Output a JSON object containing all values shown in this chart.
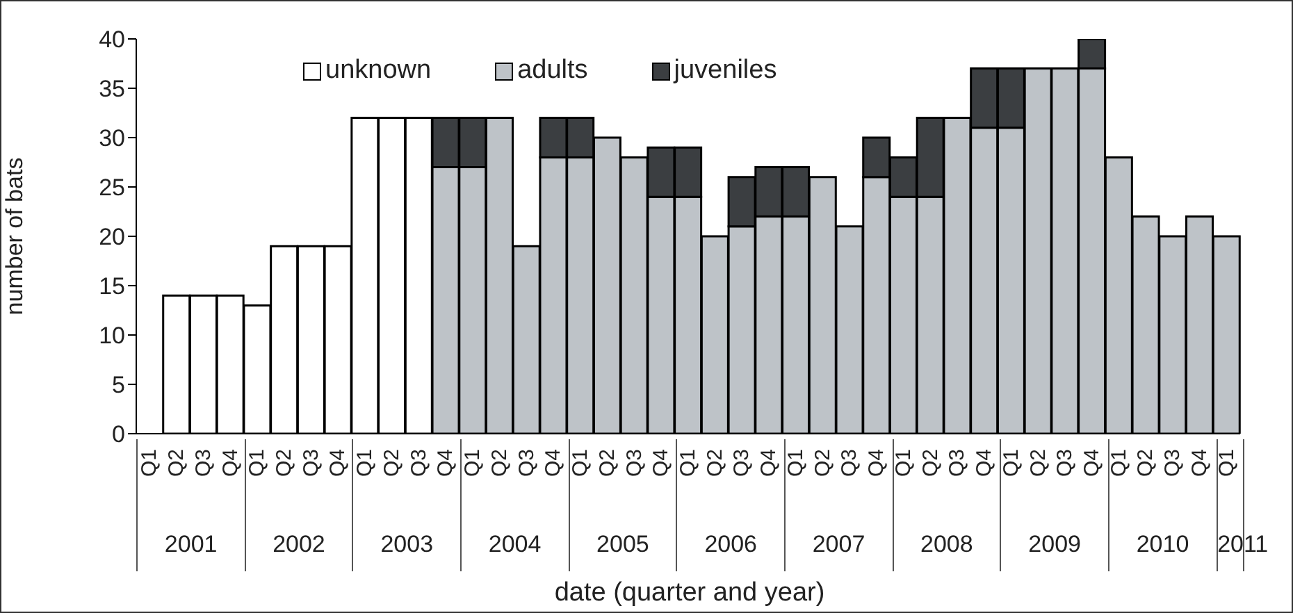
{
  "chart_data": {
    "type": "bar",
    "stacked": true,
    "xlabel": "date (quarter and year)",
    "ylabel": "number of bats",
    "categories": [
      "Q1",
      "Q2",
      "Q3",
      "Q4",
      "Q1",
      "Q2",
      "Q3",
      "Q4",
      "Q1",
      "Q2",
      "Q3",
      "Q4",
      "Q1",
      "Q2",
      "Q3",
      "Q4",
      "Q1",
      "Q2",
      "Q3",
      "Q4",
      "Q1",
      "Q2",
      "Q3",
      "Q4",
      "Q1",
      "Q2",
      "Q3",
      "Q4",
      "Q1",
      "Q2",
      "Q3",
      "Q4",
      "Q1",
      "Q2",
      "Q3",
      "Q4",
      "Q1",
      "Q2",
      "Q3",
      "Q4",
      "Q1"
    ],
    "series": [
      {
        "name": "unknown",
        "color": "#ffffff",
        "values": [
          null,
          14,
          14,
          14,
          13,
          19,
          19,
          19,
          32,
          32,
          32,
          null,
          null,
          null,
          null,
          null,
          null,
          null,
          null,
          null,
          null,
          null,
          null,
          null,
          null,
          null,
          null,
          null,
          null,
          null,
          null,
          null,
          null,
          null,
          null,
          null,
          null,
          null,
          null,
          null,
          null
        ]
      },
      {
        "name": "adults",
        "color": "#bec3c8",
        "values": [
          null,
          null,
          null,
          null,
          null,
          null,
          null,
          null,
          null,
          null,
          null,
          27,
          27,
          32,
          19,
          28,
          28,
          30,
          28,
          24,
          24,
          20,
          21,
          22,
          22,
          26,
          21,
          26,
          24,
          24,
          32,
          31,
          31,
          37,
          37,
          37,
          28,
          22,
          20,
          22,
          20
        ]
      },
      {
        "name": "juveniles",
        "color": "#3b3e41",
        "values": [
          null,
          null,
          null,
          null,
          null,
          null,
          null,
          null,
          null,
          null,
          null,
          5,
          5,
          null,
          null,
          4,
          4,
          null,
          null,
          5,
          5,
          null,
          5,
          5,
          5,
          null,
          null,
          4,
          4,
          8,
          null,
          6,
          6,
          null,
          null,
          3,
          null,
          null,
          null,
          null,
          null
        ]
      }
    ],
    "ylim": [
      0,
      40
    ],
    "yticks": [
      0,
      5,
      10,
      15,
      20,
      25,
      30,
      35,
      40
    ],
    "grid": false,
    "legend": "top left",
    "annotations": [
      "2001",
      "2002",
      "2003",
      "2004",
      "2005",
      "2006",
      "2007",
      "2008",
      "2009",
      "2010",
      "2011"
    ]
  }
}
